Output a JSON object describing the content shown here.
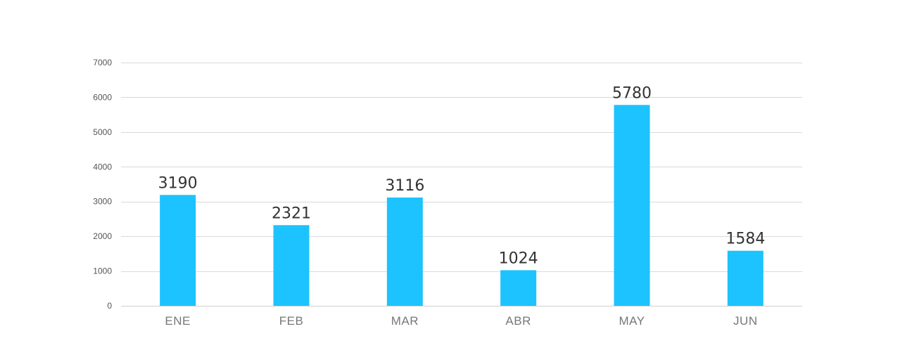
{
  "chart_data": {
    "type": "bar",
    "title": "",
    "xlabel": "",
    "ylabel": "",
    "categories": [
      "ENE",
      "FEB",
      "MAR",
      "ABR",
      "MAY",
      "JUN"
    ],
    "values": [
      3190,
      2321,
      3116,
      1024,
      5780,
      1584
    ],
    "data_labels": [
      "3190",
      "2321",
      "3116",
      "1024",
      "5780",
      "1584"
    ],
    "ylim": [
      0,
      7000
    ],
    "yticks": [
      0,
      1000,
      2000,
      3000,
      4000,
      5000,
      6000,
      7000
    ],
    "ytick_labels": [
      "0",
      "1000",
      "2000",
      "3000",
      "4000",
      "5000",
      "6000",
      "7000"
    ],
    "grid": true,
    "legend": "none",
    "bar_color": "#1cc3fe"
  }
}
